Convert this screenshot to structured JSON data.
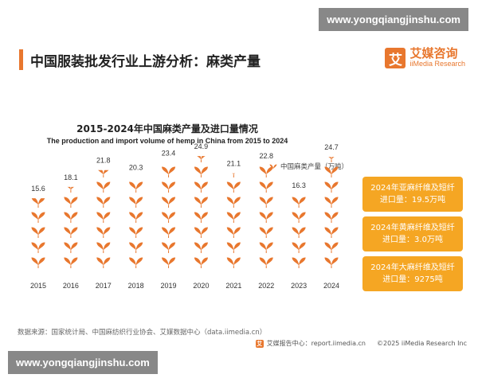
{
  "watermark": {
    "top": "www.yongqiangjinshu.com",
    "bottom": "www.yongqiangjinshu.com"
  },
  "header": {
    "title": "中国服装批发行业上游分析：麻类产量"
  },
  "logo": {
    "mark": "艾",
    "name_cn": "艾媒咨询",
    "name_en": "iiMedia Research"
  },
  "chart_data": {
    "type": "bar",
    "title": "2015-2024年中国麻类产量及进口量情况",
    "subtitle": "The production and import volume of hemp in China from 2015 to 2024",
    "categories": [
      "2015",
      "2016",
      "2017",
      "2018",
      "2019",
      "2020",
      "2021",
      "2022",
      "2023",
      "2024"
    ],
    "series": [
      {
        "name": "中国麻类产量（万吨）",
        "values": [
          15.6,
          18.1,
          21.8,
          20.3,
          23.4,
          24.9,
          21.1,
          22.8,
          16.3,
          24.7
        ]
      }
    ],
    "value_labels": [
      "15.6",
      "18.1",
      "21.8",
      "20.3",
      "23.4",
      "24.9",
      "21.1",
      "22.8",
      "16.3",
      "24.7"
    ],
    "legend_position": "top-right",
    "mark": "leaf-icon-stack",
    "accent_color": "#e8772e"
  },
  "info_boxes": [
    {
      "line1": "2024年亚麻纤维及短纤",
      "line2": "进口量：19.5万吨"
    },
    {
      "line1": "2024年黄麻纤维及短纤",
      "line2": "进口量：3.0万吨"
    },
    {
      "line1": "2024年大麻纤维及短纤",
      "line2": "进口量：9275吨"
    }
  ],
  "source": "数据来源：国家统计局、中国麻纺织行业协会、艾媒数据中心（data.iimedia.cn）",
  "footer": {
    "mark": "艾",
    "report": "艾媒报告中心：report.iimedia.cn",
    "copyright": "©2025 iiMedia Research Inc"
  }
}
